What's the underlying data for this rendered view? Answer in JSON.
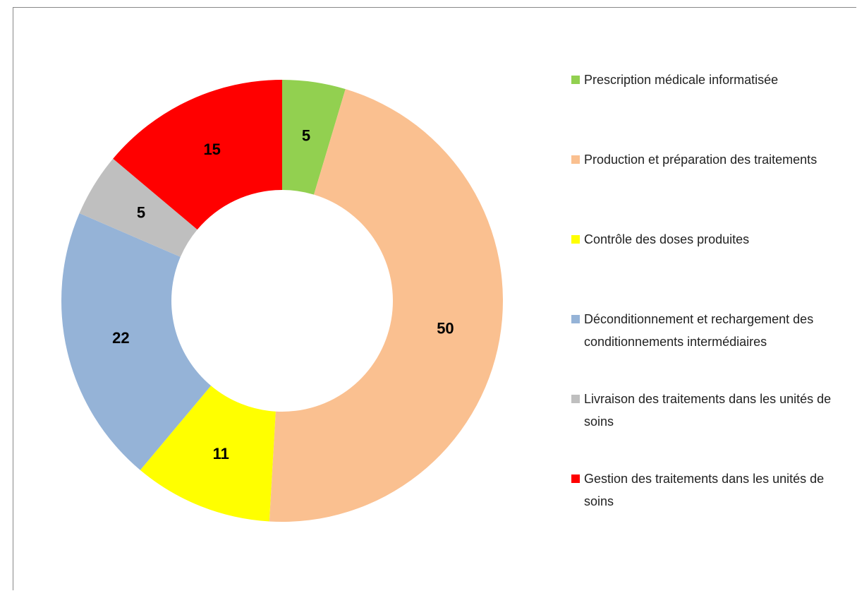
{
  "chart_data": {
    "type": "donut",
    "categories": [
      "Prescription médicale informatisée",
      "Production et préparation des traitements",
      "Contrôle des doses produites",
      "Déconditionnement et rechargement des conditionnements intermédiaires",
      "Livraison des traitements dans les unités de soins",
      "Gestion des traitements dans les unités de soins"
    ],
    "values": [
      5,
      50,
      11,
      22,
      5,
      15
    ],
    "colors": [
      "#92d050",
      "#fac090",
      "#ffff00",
      "#95b3d7",
      "#bfbfbf",
      "#ff0000"
    ],
    "legend": "right"
  }
}
